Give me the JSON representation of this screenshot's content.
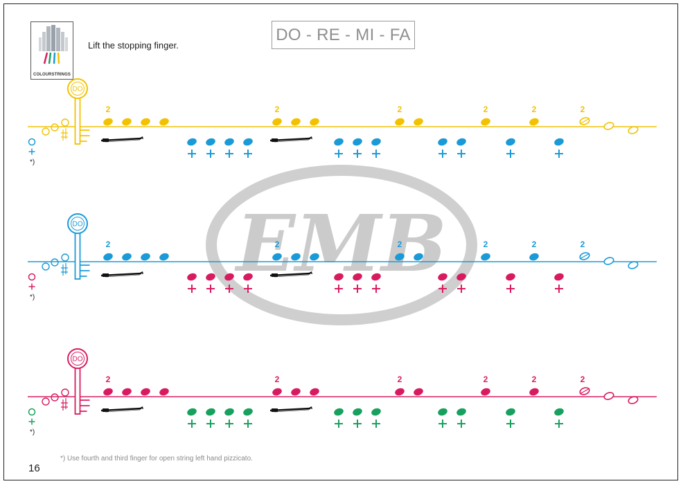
{
  "header": {
    "logo_text": "COLOURSTRINGS",
    "instruction": "Lift the stopping finger.",
    "title": "DO - RE - MI - FA"
  },
  "watermark": {
    "text": "EMB"
  },
  "key_label": "DO",
  "finger_number": "2",
  "footnote_marker": "*)",
  "colors": {
    "yellow": "#f2c200",
    "blue": "#1a9ad6",
    "red": "#d81b60",
    "green": "#17a05e",
    "watermark": "#c8c8c8"
  },
  "staves": [
    {
      "name": "yellow-staff",
      "line_color": "yellow",
      "upper_color": "yellow",
      "lower_color": "blue"
    },
    {
      "name": "blue-staff",
      "line_color": "blue",
      "upper_color": "blue",
      "lower_color": "red"
    },
    {
      "name": "red-staff",
      "line_color": "red",
      "upper_color": "red",
      "lower_color": "green"
    }
  ],
  "footer": {
    "footnote": "*) Use fourth and third finger for open string left hand pizzicato.",
    "page_number": "16"
  }
}
